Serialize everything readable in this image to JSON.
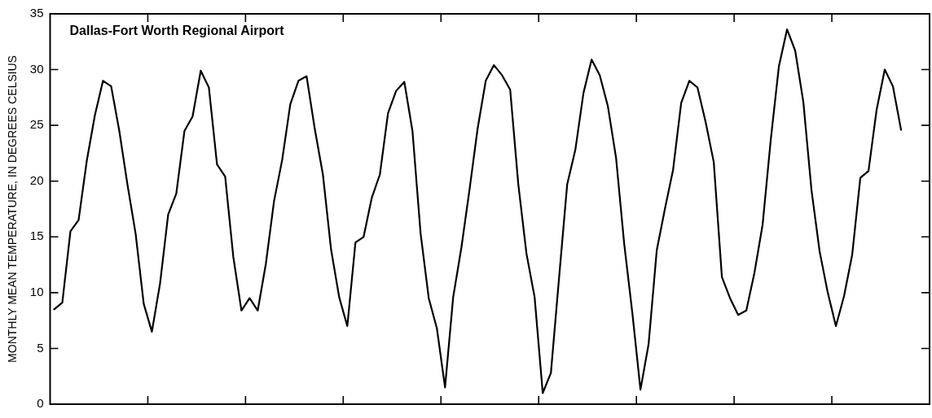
{
  "chart_data": {
    "type": "line",
    "ylabel": "MONTHLY MEAN TEMPERATURE, IN DEGREES CELSIUS",
    "annotations": [
      "Dallas-Fort Worth Regional Airport"
    ],
    "categories": [
      null,
      null,
      null,
      null,
      null,
      null,
      null,
      null,
      null,
      null,
      null,
      null,
      null,
      null,
      null,
      null,
      null,
      null,
      null,
      null,
      null,
      null,
      null,
      null,
      null,
      null,
      null,
      null,
      null,
      null,
      null,
      null,
      null,
      null,
      null,
      null,
      null,
      null,
      null,
      null,
      null,
      null,
      null,
      null,
      null,
      null,
      null,
      null,
      null,
      null,
      null,
      null,
      null,
      null,
      null,
      null,
      null,
      null,
      null,
      null,
      null,
      null,
      null,
      null,
      null,
      null,
      null,
      null,
      null,
      null,
      null,
      null,
      null,
      null,
      null,
      null,
      null,
      null,
      null,
      null,
      null,
      null,
      null,
      null,
      null,
      null,
      null,
      null,
      null,
      null,
      null,
      null,
      null,
      null,
      null,
      null,
      null,
      null,
      null,
      null,
      null,
      null,
      null,
      null,
      null,
      null,
      null,
      null
    ],
    "series": [
      {
        "color": "#000000",
        "values": [
          8.5,
          9.1,
          15.5,
          16.5,
          21.8,
          25.9,
          29.0,
          28.5,
          24.5,
          19.7,
          15.3,
          9.0,
          6.5,
          10.8,
          17.0,
          18.9,
          24.5,
          25.8,
          29.9,
          28.4,
          21.5,
          20.4,
          13.2,
          8.4,
          9.5,
          8.4,
          12.6,
          18.2,
          21.9,
          26.9,
          29.0,
          29.4,
          24.7,
          20.6,
          13.9,
          9.6,
          7.0,
          14.5,
          15.0,
          18.5,
          20.6,
          26.1,
          28.1,
          28.9,
          24.5,
          15.3,
          9.5,
          6.8,
          1.5,
          9.6,
          14.0,
          19.2,
          24.7,
          29.0,
          30.4,
          29.5,
          28.2,
          19.7,
          13.5,
          9.6,
          1.0,
          2.8,
          11.3,
          19.7,
          22.8,
          27.9,
          30.9,
          29.5,
          26.7,
          22.1,
          14.4,
          8.2,
          1.3,
          5.4,
          13.8,
          17.5,
          21.0,
          27.0,
          29.0,
          28.4,
          25.3,
          21.7,
          11.4,
          9.5,
          8.0,
          8.4,
          11.8,
          16.1,
          23.7,
          30.3,
          33.6,
          31.7,
          27.1,
          19.2,
          13.7,
          10.0,
          7.0,
          9.7,
          13.4,
          20.3,
          20.9,
          26.4,
          30.0,
          28.5,
          24.6,
          null,
          null,
          null
        ]
      }
    ],
    "ylim": [
      0,
      35
    ],
    "yticks": [
      0,
      5,
      10,
      15,
      20,
      25,
      30,
      35
    ],
    "grid": false,
    "legend": false,
    "tick_labels": "y",
    "marker": "none",
    "line_style": "solid"
  }
}
